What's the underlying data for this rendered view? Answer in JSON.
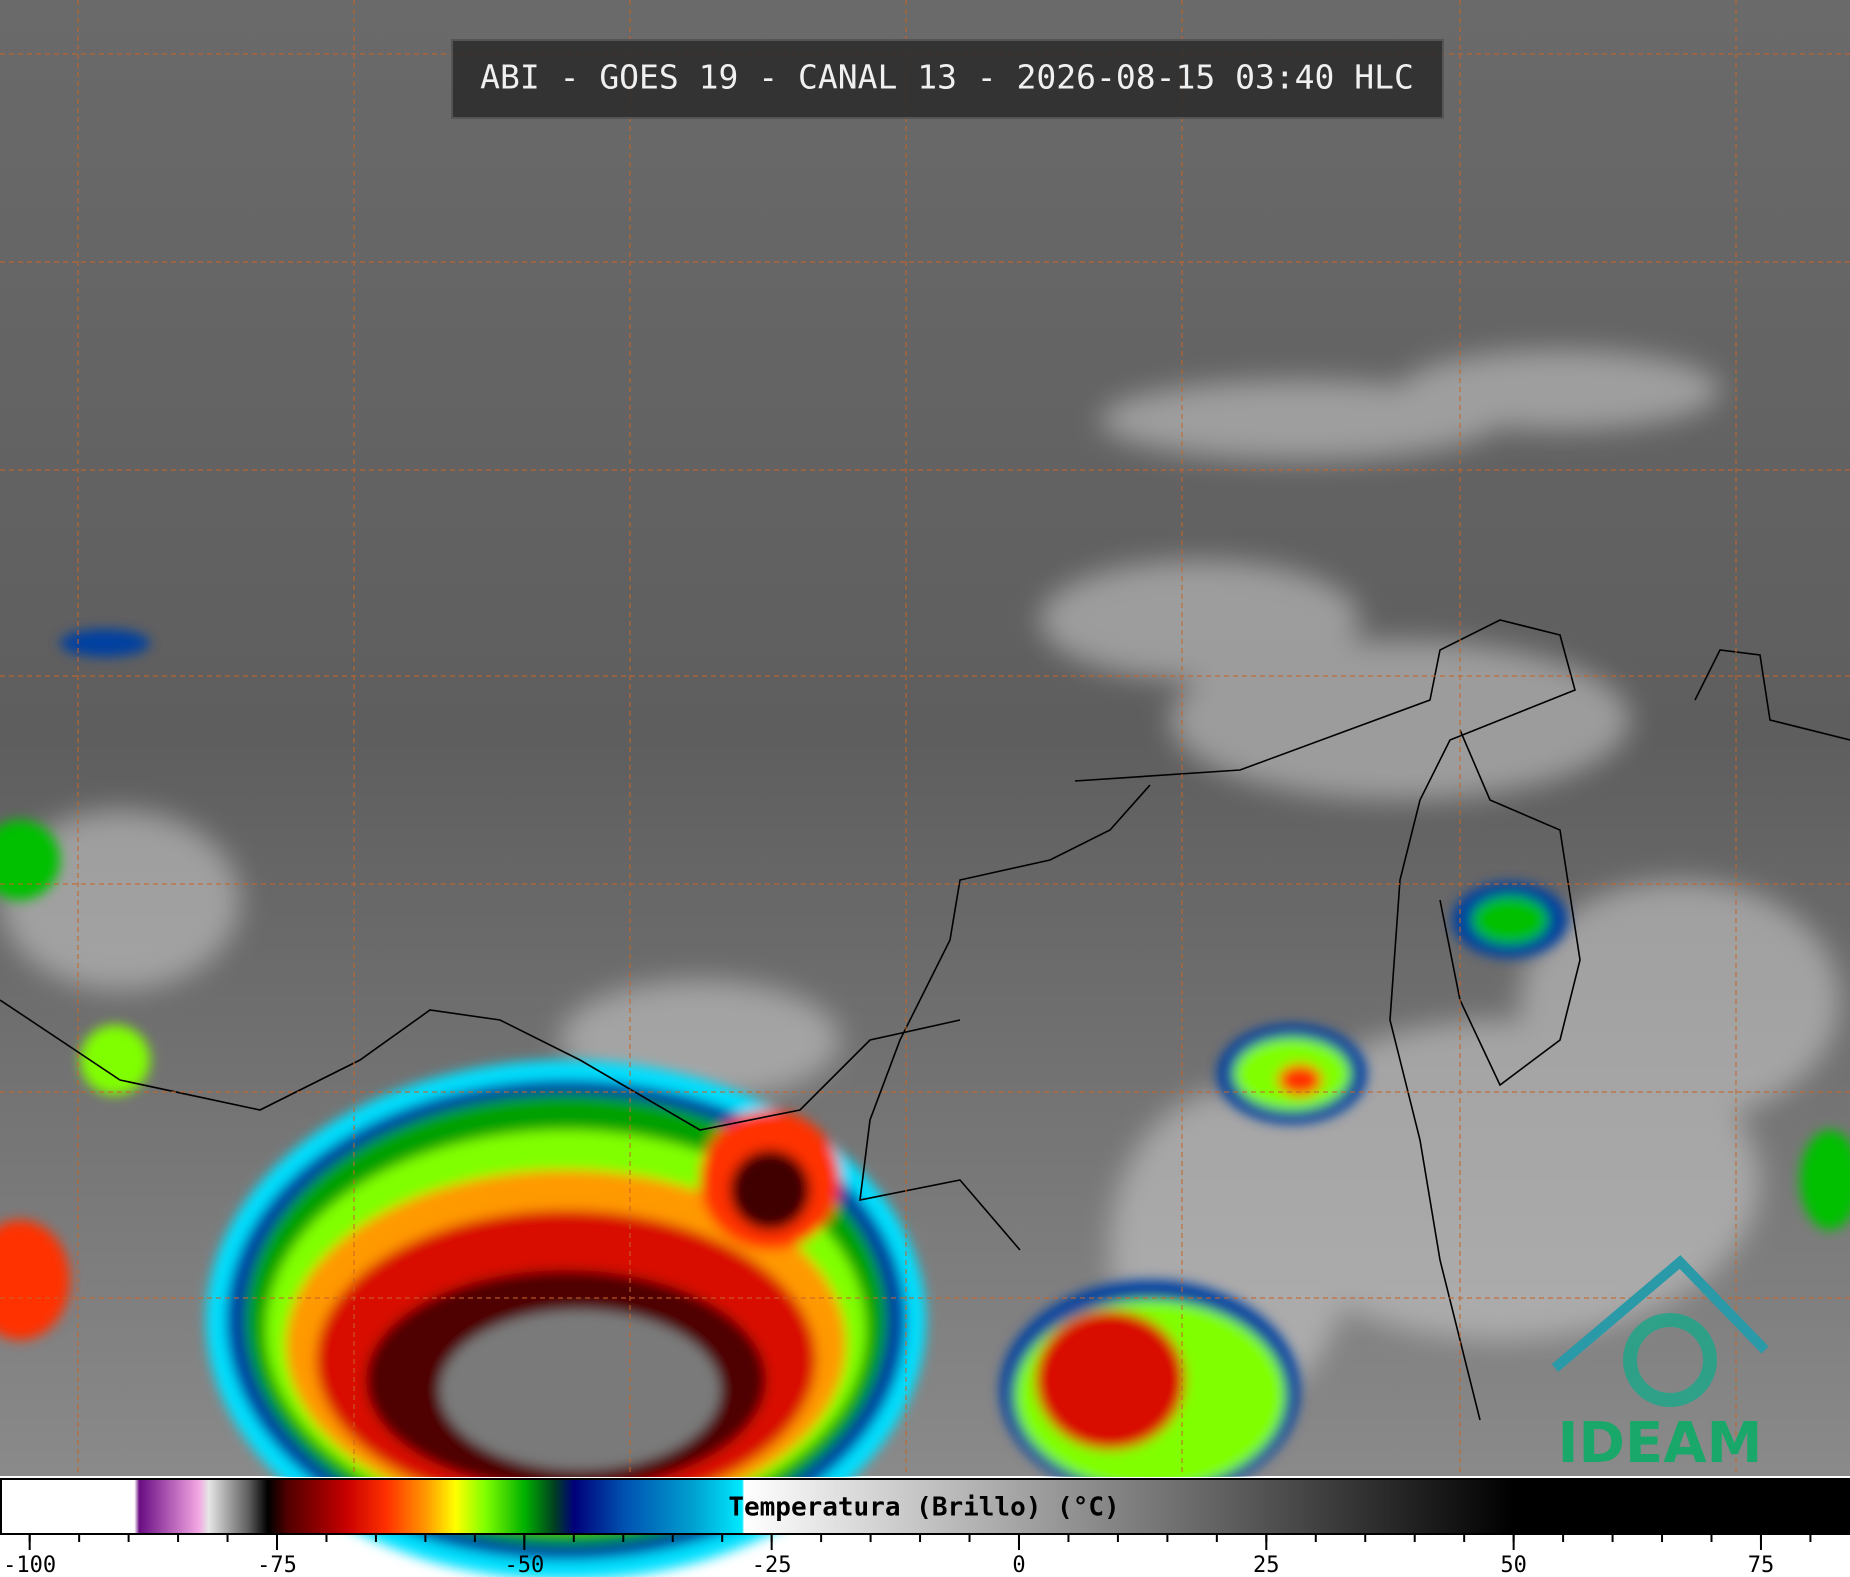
{
  "title": "ABI - GOES 19 - CANAL 13 - 2026-08-15 03:40 HLC",
  "colorbar": {
    "label": "Temperatura (Brillo) (°C)",
    "xlim": [
      -103,
      84
    ],
    "xticks": [
      -100,
      -75,
      -50,
      -25,
      0,
      25,
      50,
      75
    ],
    "minor_tick_step": 5,
    "colorscale": [
      {
        "value": -103,
        "color": "#ffffff"
      },
      {
        "value": -89.5,
        "color": "#ffffff"
      },
      {
        "value": -89,
        "color": "#6a0d83"
      },
      {
        "value": -83,
        "color": "#f3a6e3"
      },
      {
        "value": -82,
        "color": "#e6e6e6"
      },
      {
        "value": -78,
        "color": "#606060"
      },
      {
        "value": -76,
        "color": "#000000"
      },
      {
        "value": -74,
        "color": "#500000"
      },
      {
        "value": -68,
        "color": "#c80000"
      },
      {
        "value": -64,
        "color": "#ff3000"
      },
      {
        "value": -60,
        "color": "#ff9900"
      },
      {
        "value": -57,
        "color": "#ffff00"
      },
      {
        "value": -54,
        "color": "#80ff00"
      },
      {
        "value": -50,
        "color": "#00b000"
      },
      {
        "value": -47,
        "color": "#004020"
      },
      {
        "value": -45,
        "color": "#00007a"
      },
      {
        "value": -40,
        "color": "#0050b0"
      },
      {
        "value": -33,
        "color": "#00a0d0"
      },
      {
        "value": -28,
        "color": "#00eaff"
      },
      {
        "value": -27.8,
        "color": "#ffffff"
      },
      {
        "value": 50,
        "color": "#000000"
      },
      {
        "value": 84,
        "color": "#000000"
      }
    ]
  },
  "logo": {
    "text": "IDEAM"
  }
}
